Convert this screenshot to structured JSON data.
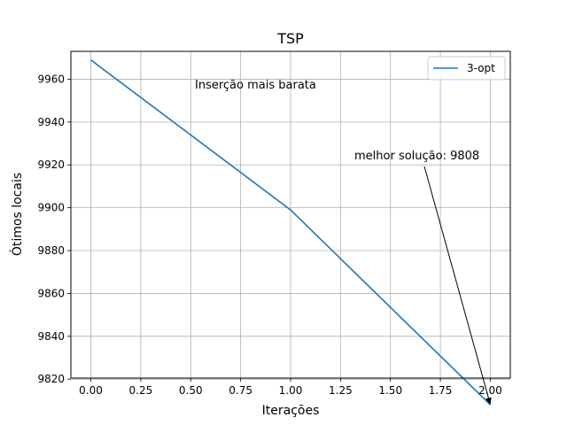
{
  "chart_data": {
    "type": "line",
    "title": "TSP",
    "xlabel": "Iterações",
    "ylabel": "Ótimos locais",
    "xlim": [
      -0.1,
      2.1
    ],
    "ylim": [
      9820.5,
      9973
    ],
    "xticks": [
      0.0,
      0.25,
      0.5,
      0.75,
      1.0,
      1.25,
      1.5,
      1.75,
      2.0
    ],
    "xtick_labels": [
      "0.00",
      "0.25",
      "0.50",
      "0.75",
      "1.00",
      "1.25",
      "1.50",
      "1.75",
      "2.00"
    ],
    "yticks": [
      9820,
      9840,
      9860,
      9880,
      9900,
      9920,
      9940,
      9960
    ],
    "ytick_labels": [
      "9820",
      "9840",
      "9860",
      "9880",
      "9900",
      "9920",
      "9940",
      "9960"
    ],
    "grid": true,
    "legend": "upper-right",
    "series": [
      {
        "name": "3-opt",
        "color": "#1f77b4",
        "x": [
          0,
          1,
          2
        ],
        "y": [
          9969,
          9899,
          9808
        ]
      }
    ],
    "annotations": [
      {
        "text": "Inserção mais barata"
      },
      {
        "text": "melhor solução: 9808",
        "target": [
          2,
          9808
        ]
      }
    ]
  }
}
